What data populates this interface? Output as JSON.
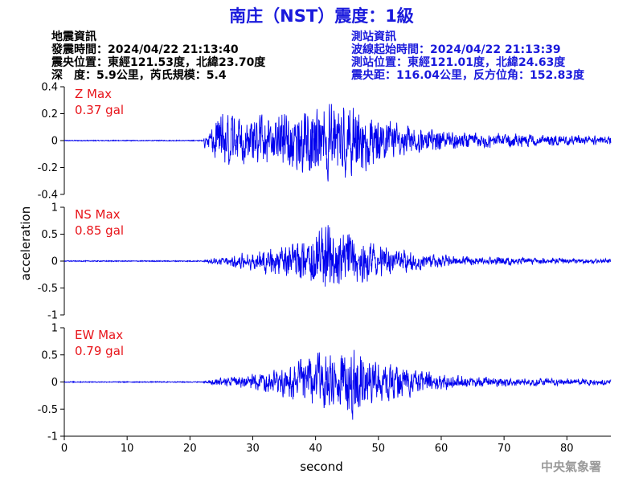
{
  "title": "南庄（NST）震度：1級",
  "earthquake_info": {
    "heading": "地震資訊",
    "origin_time": "發震時間：2024/04/22 21:13:40",
    "epicenter": "震央位置：東經121.53度，北緯23.70度",
    "depth_magnitude": "深　度：5.9公里，芮氏規模：5.4"
  },
  "station_info": {
    "heading": "測站資訊",
    "wave_start": "波線起始時間：2024/04/22 21:13:39",
    "station_location": "測站位置：東經121.01度，北緯24.63度",
    "distance_azimuth": "震央距：116.04公里，反方位角：152.83度"
  },
  "credit": "中央氣象署",
  "colors": {
    "trace": "#0000ee",
    "title": "#1a1adc",
    "max_label": "#e8141a"
  },
  "chart_data": [
    {
      "type": "line",
      "component": "Z",
      "max_label": "Z Max",
      "max_value": "0.37 gal",
      "ylim": [
        -0.4,
        0.4
      ],
      "yticks": [
        "0.4",
        "0.2",
        "0",
        "-0.2",
        "-0.4"
      ],
      "ytick_values": [
        0.4,
        0.2,
        0,
        -0.2,
        -0.4
      ],
      "peak": 0.37,
      "noise": 0.003,
      "onset_s": 22.2,
      "envelope": [
        [
          22.2,
          0.05
        ],
        [
          25,
          0.26
        ],
        [
          28,
          0.2
        ],
        [
          33,
          0.24
        ],
        [
          38,
          0.3
        ],
        [
          42,
          0.37
        ],
        [
          46,
          0.33
        ],
        [
          50,
          0.22
        ],
        [
          55,
          0.14
        ],
        [
          62,
          0.08
        ],
        [
          72,
          0.06
        ],
        [
          87,
          0.04
        ]
      ]
    },
    {
      "type": "line",
      "component": "NS",
      "max_label": "NS Max",
      "max_value": "0.85 gal",
      "ylim": [
        -1,
        1
      ],
      "yticks": [
        "1",
        "0.5",
        "0",
        "-0.5",
        "-1"
      ],
      "ytick_values": [
        1,
        0.5,
        0,
        -0.5,
        -1
      ],
      "peak": 0.85,
      "noise": 0.008,
      "onset_s": 22.2,
      "envelope": [
        [
          22.2,
          0.03
        ],
        [
          25,
          0.1
        ],
        [
          30,
          0.22
        ],
        [
          35,
          0.38
        ],
        [
          39,
          0.6
        ],
        [
          42,
          0.85
        ],
        [
          46,
          0.55
        ],
        [
          52,
          0.3
        ],
        [
          58,
          0.16
        ],
        [
          66,
          0.1
        ],
        [
          78,
          0.07
        ],
        [
          87,
          0.05
        ]
      ]
    },
    {
      "type": "line",
      "component": "EW",
      "max_label": "EW Max",
      "max_value": "0.79 gal",
      "ylim": [
        -1,
        1
      ],
      "yticks": [
        "1",
        "0.5",
        "0",
        "-0.5",
        "-1"
      ],
      "ytick_values": [
        1,
        0.5,
        0,
        -0.5,
        -1
      ],
      "peak": 0.79,
      "noise": 0.008,
      "onset_s": 22.2,
      "envelope": [
        [
          22.2,
          0.03
        ],
        [
          25,
          0.1
        ],
        [
          30,
          0.18
        ],
        [
          35,
          0.35
        ],
        [
          40,
          0.6
        ],
        [
          43,
          0.7
        ],
        [
          46,
          0.79
        ],
        [
          50,
          0.45
        ],
        [
          55,
          0.3
        ],
        [
          62,
          0.15
        ],
        [
          72,
          0.1
        ],
        [
          87,
          0.07
        ]
      ]
    }
  ],
  "x_axis": {
    "label": "second",
    "ticks": [
      "0",
      "10",
      "20",
      "30",
      "40",
      "50",
      "60",
      "70",
      "80"
    ],
    "tick_values": [
      0,
      10,
      20,
      30,
      40,
      50,
      60,
      70,
      80
    ],
    "xlim": [
      0,
      87
    ]
  },
  "y_axis": {
    "label": "acceleration"
  }
}
